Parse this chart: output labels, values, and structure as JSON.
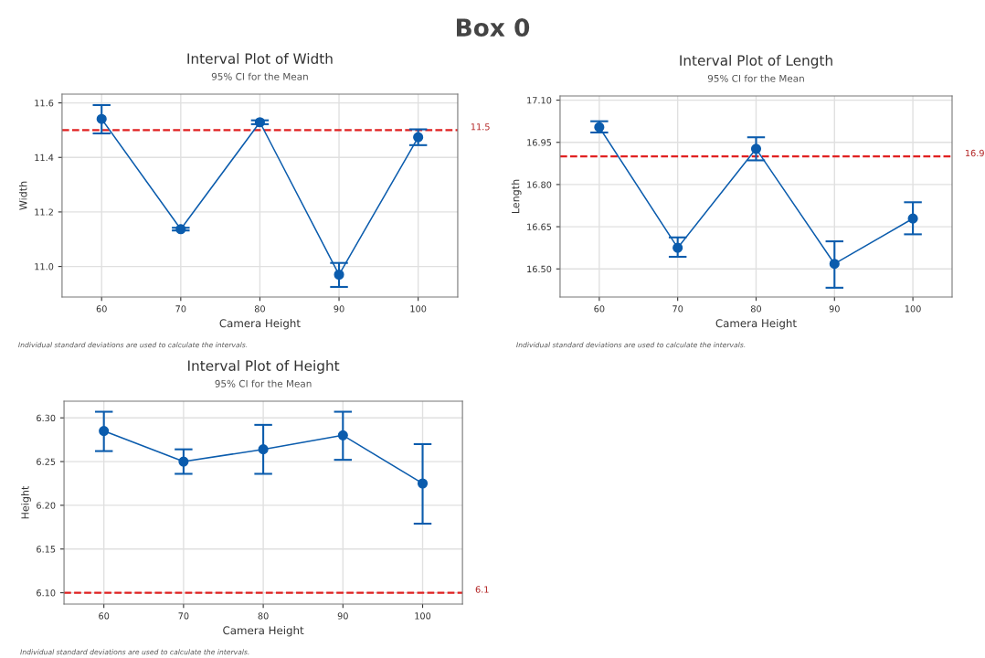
{
  "chart_data": [
    {
      "type": "other",
      "title": "Box 0"
    },
    {
      "type": "line",
      "title": "Interval Plot of Width",
      "subtitle": "95% CI for the Mean",
      "xlabel": "Camera Height",
      "ylabel": "Width",
      "x": [
        60,
        70,
        80,
        90,
        100
      ],
      "series": [
        {
          "color": "#0b5cad",
          "values": [
            11.541,
            11.137,
            11.529,
            10.97,
            11.474
          ],
          "errors": [
            [
              11.488,
              11.592
            ],
            [
              11.132,
              11.142
            ],
            [
              11.522,
              11.536
            ],
            [
              10.925,
              11.013
            ],
            [
              11.445,
              11.503
            ]
          ]
        }
      ],
      "xlim": [
        55,
        105
      ],
      "xticks": [
        60,
        70,
        80,
        90,
        100
      ],
      "ylim": [
        10.888,
        11.632
      ],
      "yticks": [
        {
          "value": 11.0,
          "label": "11.0"
        },
        {
          "value": 11.2,
          "label": "11.2"
        },
        {
          "value": 11.4,
          "label": "11.4"
        },
        {
          "value": 11.6,
          "label": "11.6"
        }
      ],
      "ref_lines": [
        {
          "axis": "y",
          "value": 11.5,
          "label": "11.5",
          "color": "#e02020",
          "line_style": "dashed"
        }
      ],
      "annotations": [
        "Individual standard deviations are used to calculate the intervals."
      ],
      "grid": true,
      "marker": "circle",
      "line_style": "solid"
    },
    {
      "type": "line",
      "title": "Interval Plot of Length",
      "subtitle": "95% CI for the Mean",
      "xlabel": "Camera Height",
      "ylabel": "Length",
      "x": [
        60,
        70,
        80,
        90,
        100
      ],
      "series": [
        {
          "color": "#0b5cad",
          "values": [
            17.004,
            16.575,
            16.927,
            16.518,
            16.679
          ],
          "errors": [
            [
              16.985,
              17.025
            ],
            [
              16.543,
              16.612
            ],
            [
              16.886,
              16.968
            ],
            [
              16.433,
              16.598
            ],
            [
              16.623,
              16.737
            ]
          ]
        }
      ],
      "xlim": [
        55,
        105
      ],
      "xticks": [
        60,
        70,
        80,
        90,
        100
      ],
      "ylim": [
        16.4,
        17.115
      ],
      "yticks": [
        {
          "value": 16.5,
          "label": "16.50"
        },
        {
          "value": 16.65,
          "label": "16.65"
        },
        {
          "value": 16.8,
          "label": "16.80"
        },
        {
          "value": 16.95,
          "label": "16.95"
        },
        {
          "value": 17.1,
          "label": "17.10"
        }
      ],
      "ref_lines": [
        {
          "axis": "y",
          "value": 16.9,
          "label": "16.9",
          "color": "#e02020",
          "line_style": "dashed"
        }
      ],
      "annotations": [
        "Individual standard deviations are used to calculate the intervals."
      ],
      "grid": true,
      "marker": "circle",
      "line_style": "solid"
    },
    {
      "type": "line",
      "title": "Interval Plot of Height",
      "subtitle": "95% CI for the Mean",
      "xlabel": "Camera Height",
      "ylabel": "Height",
      "x": [
        60,
        70,
        80,
        90,
        100
      ],
      "series": [
        {
          "color": "#0b5cad",
          "values": [
            6.285,
            6.25,
            6.264,
            6.28,
            6.225
          ],
          "errors": [
            [
              6.262,
              6.307
            ],
            [
              6.236,
              6.264
            ],
            [
              6.236,
              6.292
            ],
            [
              6.252,
              6.307
            ],
            [
              6.179,
              6.27
            ]
          ]
        }
      ],
      "xlim": [
        55,
        105
      ],
      "xticks": [
        60,
        70,
        80,
        90,
        100
      ],
      "ylim": [
        6.087,
        6.319
      ],
      "yticks": [
        {
          "value": 6.1,
          "label": "6.10"
        },
        {
          "value": 6.15,
          "label": "6.15"
        },
        {
          "value": 6.2,
          "label": "6.20"
        },
        {
          "value": 6.25,
          "label": "6.25"
        },
        {
          "value": 6.3,
          "label": "6.30"
        }
      ],
      "ref_lines": [
        {
          "axis": "y",
          "value": 6.1,
          "label": "6.1",
          "color": "#e02020",
          "line_style": "dashed"
        }
      ],
      "annotations": [
        "Individual standard deviations are used to calculate the intervals."
      ],
      "grid": true,
      "marker": "circle",
      "line_style": "solid"
    }
  ]
}
